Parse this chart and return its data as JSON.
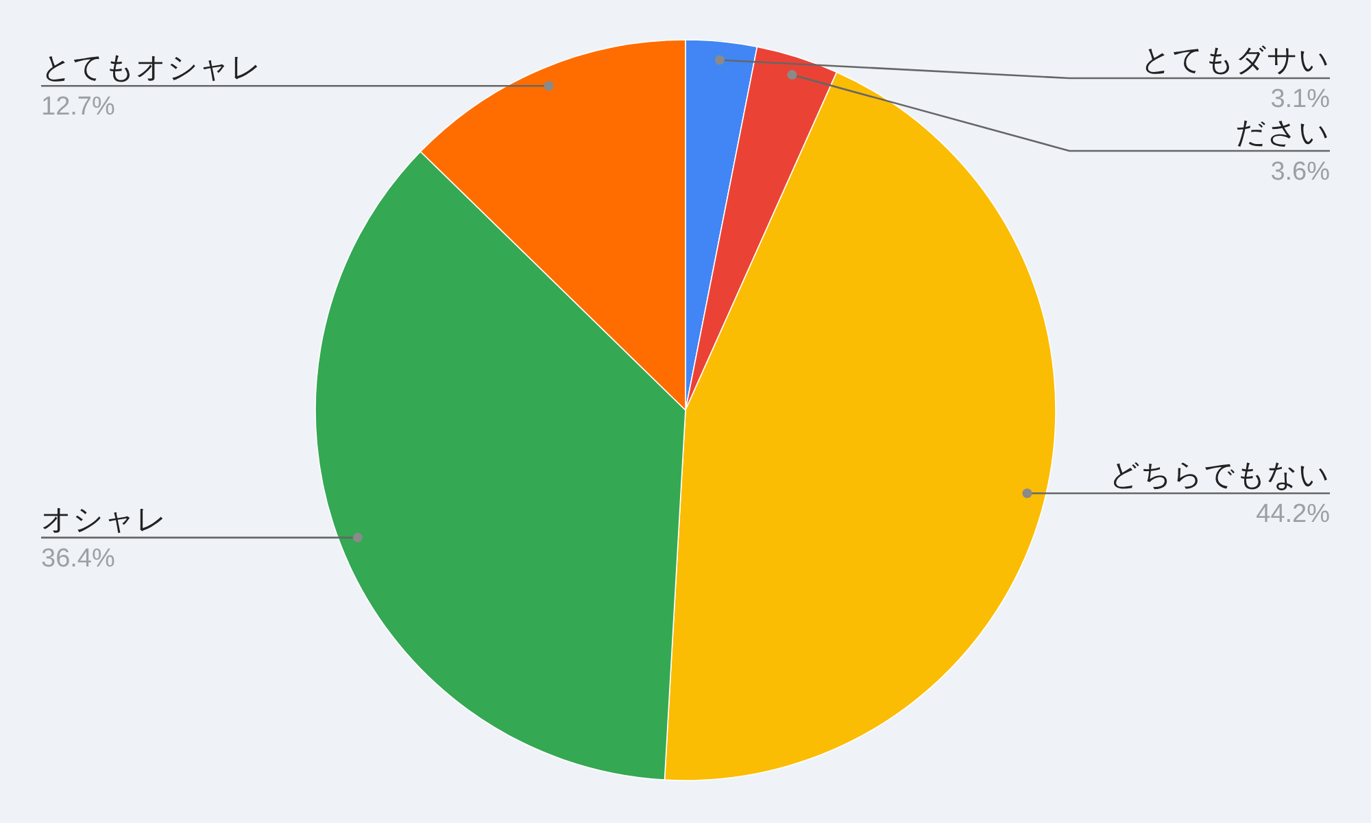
{
  "chart_data": {
    "type": "pie",
    "categories": [
      "とてもダサい",
      "ださい",
      "どちらでもない",
      "オシャレ",
      "とてもオシャレ"
    ],
    "values": [
      3.1,
      3.6,
      44.2,
      36.4,
      12.7
    ],
    "colors": [
      "#4285f4",
      "#ea4335",
      "#fbbc04",
      "#34a853",
      "#ff6d01"
    ],
    "value_labels": [
      "3.1%",
      "3.6%",
      "44.2%",
      "36.4%",
      "12.7%"
    ]
  }
}
